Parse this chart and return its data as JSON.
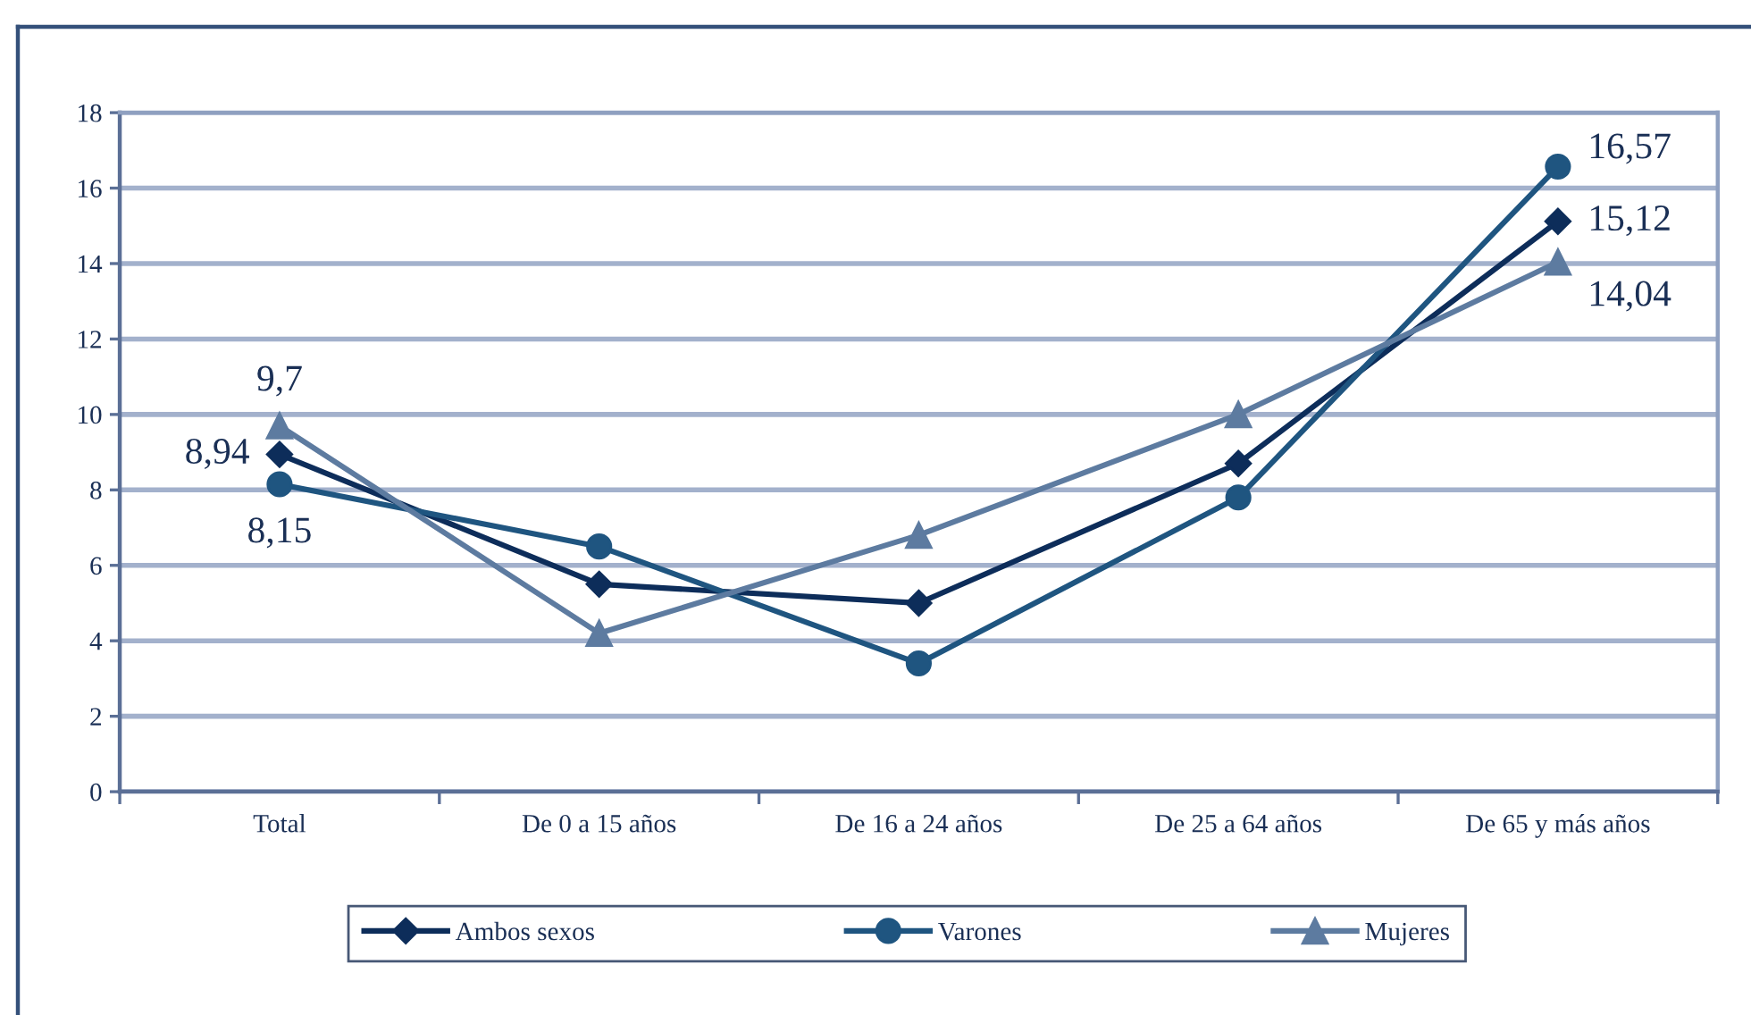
{
  "chart_data": {
    "type": "line",
    "categories": [
      "Total",
      "De 0 a 15 años",
      "De 16 a 24 años",
      "De 25 a 64 años",
      "De 65 y más años"
    ],
    "series": [
      {
        "name": "Ambos sexos",
        "color": "#0d2d5a",
        "marker": "diamond",
        "values": [
          8.94,
          5.5,
          5.0,
          8.7,
          15.12
        ],
        "value_labels": [
          "8,94",
          null,
          null,
          null,
          "15,12"
        ]
      },
      {
        "name": "Varones",
        "color": "#1f5580",
        "marker": "circle",
        "values": [
          8.15,
          6.5,
          3.4,
          7.8,
          16.57
        ],
        "value_labels": [
          "8,15",
          null,
          null,
          null,
          "16,57"
        ]
      },
      {
        "name": "Mujeres",
        "color": "#5d7ba0",
        "marker": "triangle",
        "values": [
          9.7,
          4.2,
          6.8,
          10.0,
          14.04
        ],
        "value_labels": [
          "9,7",
          null,
          null,
          null,
          "14,04"
        ]
      }
    ],
    "ylim": [
      0,
      18
    ],
    "yticks": [
      0,
      2,
      4,
      6,
      8,
      10,
      12,
      14,
      16,
      18
    ],
    "grid": "y",
    "legend": "bottom"
  }
}
